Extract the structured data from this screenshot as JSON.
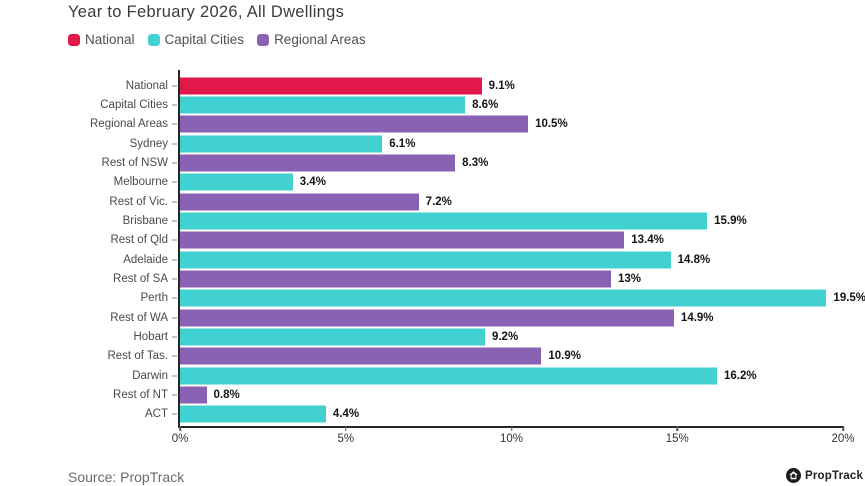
{
  "header": {
    "title": "Year to February 2026, All Dwellings"
  },
  "footer": {
    "source": "Source: PropTrack",
    "brand": "PropTrack"
  },
  "chart_data": {
    "type": "bar",
    "orientation": "horizontal",
    "title": "Year to February 2026, All Dwellings",
    "xlabel": "",
    "ylabel": "",
    "xlim": [
      0,
      20
    ],
    "grid": false,
    "legend_position": "top",
    "x_ticks": [
      {
        "value": 0,
        "label": "0%"
      },
      {
        "value": 5,
        "label": "5%"
      },
      {
        "value": 10,
        "label": "10%"
      },
      {
        "value": 15,
        "label": "15%"
      },
      {
        "value": 20,
        "label": "20%"
      }
    ],
    "legend": [
      {
        "label": "National",
        "color": "#E1184A"
      },
      {
        "label": "Capital Cities",
        "color": "#40D1D0"
      },
      {
        "label": "Regional Areas",
        "color": "#8A62B3"
      }
    ],
    "bars": [
      {
        "category": "National",
        "value": 9.1,
        "label": "9.1%",
        "group": "National"
      },
      {
        "category": "Capital Cities",
        "value": 8.6,
        "label": "8.6%",
        "group": "Capital Cities"
      },
      {
        "category": "Regional Areas",
        "value": 10.5,
        "label": "10.5%",
        "group": "Regional Areas"
      },
      {
        "category": "Sydney",
        "value": 6.1,
        "label": "6.1%",
        "group": "Capital Cities"
      },
      {
        "category": "Rest of NSW",
        "value": 8.3,
        "label": "8.3%",
        "group": "Regional Areas"
      },
      {
        "category": "Melbourne",
        "value": 3.4,
        "label": "3.4%",
        "group": "Capital Cities"
      },
      {
        "category": "Rest of Vic.",
        "value": 7.2,
        "label": "7.2%",
        "group": "Regional Areas"
      },
      {
        "category": "Brisbane",
        "value": 15.9,
        "label": "15.9%",
        "group": "Capital Cities"
      },
      {
        "category": "Rest of Qld",
        "value": 13.4,
        "label": "13.4%",
        "group": "Regional Areas"
      },
      {
        "category": "Adelaide",
        "value": 14.8,
        "label": "14.8%",
        "group": "Capital Cities"
      },
      {
        "category": "Rest of SA",
        "value": 13,
        "label": "13%",
        "group": "Regional Areas"
      },
      {
        "category": "Perth",
        "value": 19.5,
        "label": "19.5%",
        "group": "Capital Cities"
      },
      {
        "category": "Rest of WA",
        "value": 14.9,
        "label": "14.9%",
        "group": "Regional Areas"
      },
      {
        "category": "Hobart",
        "value": 9.2,
        "label": "9.2%",
        "group": "Capital Cities"
      },
      {
        "category": "Rest of Tas.",
        "value": 10.9,
        "label": "10.9%",
        "group": "Regional Areas"
      },
      {
        "category": "Darwin",
        "value": 16.2,
        "label": "16.2%",
        "group": "Capital Cities"
      },
      {
        "category": "Rest of NT",
        "value": 0.8,
        "label": "0.8%",
        "group": "Regional Areas"
      },
      {
        "category": "ACT",
        "value": 4.4,
        "label": "4.4%",
        "group": "Capital Cities"
      }
    ]
  }
}
